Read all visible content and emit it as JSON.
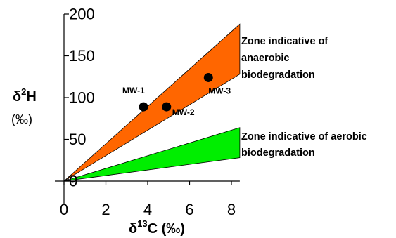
{
  "chart_data": {
    "type": "scatter",
    "x_axis": {
      "range": [
        0,
        8.4
      ],
      "ticks": [
        0,
        2,
        4,
        6,
        8
      ],
      "tick_labels": [
        "0",
        "2",
        "4",
        "6",
        "8"
      ],
      "title_main": "δ",
      "title_sup": "13",
      "title_rest": "C (‰)"
    },
    "y_axis": {
      "range": [
        -5,
        200
      ],
      "ticks": [
        0,
        50,
        100,
        150,
        200
      ],
      "tick_labels": [
        "0",
        "50",
        "100",
        "150",
        "200"
      ],
      "title_main": "δ",
      "title_sup": "2",
      "title_rest": "H",
      "unit": "(‰)"
    },
    "grid": false,
    "points": [
      {
        "label": "MW-1",
        "x": 3.8,
        "y": 89
      },
      {
        "label": "MW-2",
        "x": 4.9,
        "y": 89
      },
      {
        "label": "MW-3",
        "x": 6.9,
        "y": 124
      }
    ],
    "zones": [
      {
        "label_lines": [
          "Zone indicative of",
          "anaerobic",
          "biodegradation"
        ],
        "color": "#ff6600",
        "polygon": [
          [
            0,
            0
          ],
          [
            8.4,
            188
          ],
          [
            8.4,
            128
          ]
        ]
      },
      {
        "label_lines": [
          "Zone indicative of aerobic",
          "biodegradation"
        ],
        "color": "#00ee00",
        "polygon": [
          [
            0,
            0
          ],
          [
            8.4,
            64
          ],
          [
            8.4,
            28
          ]
        ]
      }
    ],
    "origin_marker": {
      "x": 0.4,
      "y": 3
    }
  }
}
